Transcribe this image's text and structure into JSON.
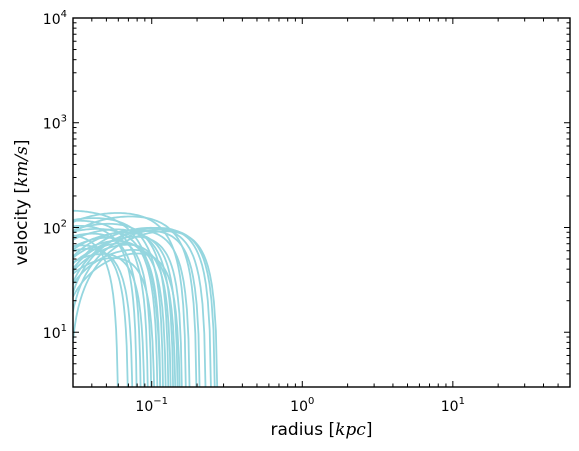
{
  "chart_data": {
    "type": "line",
    "title": "",
    "xlabel": {
      "text": "radius ",
      "bracket_open": "[",
      "unit": "kpc",
      "bracket_close": "]"
    },
    "ylabel": {
      "text": "velocity ",
      "bracket_open": "[",
      "unit": "km/s",
      "bracket_close": "]"
    },
    "xscale": "log",
    "yscale": "log",
    "xlim": [
      0.03,
      60
    ],
    "ylim": [
      3,
      10000
    ],
    "grid": false,
    "legend": "none",
    "line_color": "#95d6df",
    "x_ticks": [
      {
        "value": 0.1,
        "base": "10",
        "exp": "−1"
      },
      {
        "value": 1,
        "base": "10",
        "exp": "0"
      },
      {
        "value": 10,
        "base": "10",
        "exp": "1"
      }
    ],
    "y_ticks": [
      {
        "value": 10,
        "base": "10",
        "exp": "1"
      },
      {
        "value": 100,
        "base": "10",
        "exp": "2"
      },
      {
        "value": 1000,
        "base": "10",
        "exp": "3"
      },
      {
        "value": 10000,
        "base": "10",
        "exp": "4"
      }
    ],
    "series": [
      {
        "peak_r": 0.03,
        "vmax": 145,
        "r_end": 0.115
      },
      {
        "peak_r": 0.035,
        "vmax": 118,
        "r_end": 0.095
      },
      {
        "peak_r": 0.04,
        "vmax": 108,
        "r_end": 0.08
      },
      {
        "peak_r": 0.045,
        "vmax": 125,
        "r_end": 0.12
      },
      {
        "peak_r": 0.05,
        "vmax": 100,
        "r_end": 0.11
      },
      {
        "peak_r": 0.055,
        "vmax": 95,
        "r_end": 0.085
      },
      {
        "peak_r": 0.06,
        "vmax": 112,
        "r_end": 0.13
      },
      {
        "peak_r": 0.065,
        "vmax": 140,
        "r_end": 0.17
      },
      {
        "peak_r": 0.07,
        "vmax": 100,
        "r_end": 0.14
      },
      {
        "peak_r": 0.075,
        "vmax": 90,
        "r_end": 0.1
      },
      {
        "peak_r": 0.08,
        "vmax": 130,
        "r_end": 0.2
      },
      {
        "peak_r": 0.085,
        "vmax": 95,
        "r_end": 0.15
      },
      {
        "peak_r": 0.09,
        "vmax": 85,
        "r_end": 0.115
      },
      {
        "peak_r": 0.095,
        "vmax": 80,
        "r_end": 0.125
      },
      {
        "peak_r": 0.1,
        "vmax": 100,
        "r_end": 0.18
      },
      {
        "peak_r": 0.105,
        "vmax": 78,
        "r_end": 0.135
      },
      {
        "peak_r": 0.11,
        "vmax": 90,
        "r_end": 0.16
      },
      {
        "peak_r": 0.12,
        "vmax": 104,
        "r_end": 0.23
      },
      {
        "peak_r": 0.13,
        "vmax": 100,
        "r_end": 0.21
      },
      {
        "peak_r": 0.14,
        "vmax": 105,
        "r_end": 0.25
      },
      {
        "peak_r": 0.15,
        "vmax": 102,
        "r_end": 0.265
      },
      {
        "peak_r": 0.16,
        "vmax": 98,
        "r_end": 0.275
      },
      {
        "peak_r": 0.035,
        "vmax": 90,
        "r_end": 0.06
      },
      {
        "peak_r": 0.05,
        "vmax": 75,
        "r_end": 0.07
      },
      {
        "peak_r": 0.055,
        "vmax": 70,
        "r_end": 0.075
      },
      {
        "peak_r": 0.075,
        "vmax": 65,
        "r_end": 0.09
      },
      {
        "peak_r": 0.09,
        "vmax": 60,
        "r_end": 0.105
      },
      {
        "peak_r": 0.115,
        "vmax": 70,
        "r_end": 0.145
      },
      {
        "peak_r": 0.125,
        "vmax": 65,
        "r_end": 0.155
      }
    ]
  }
}
